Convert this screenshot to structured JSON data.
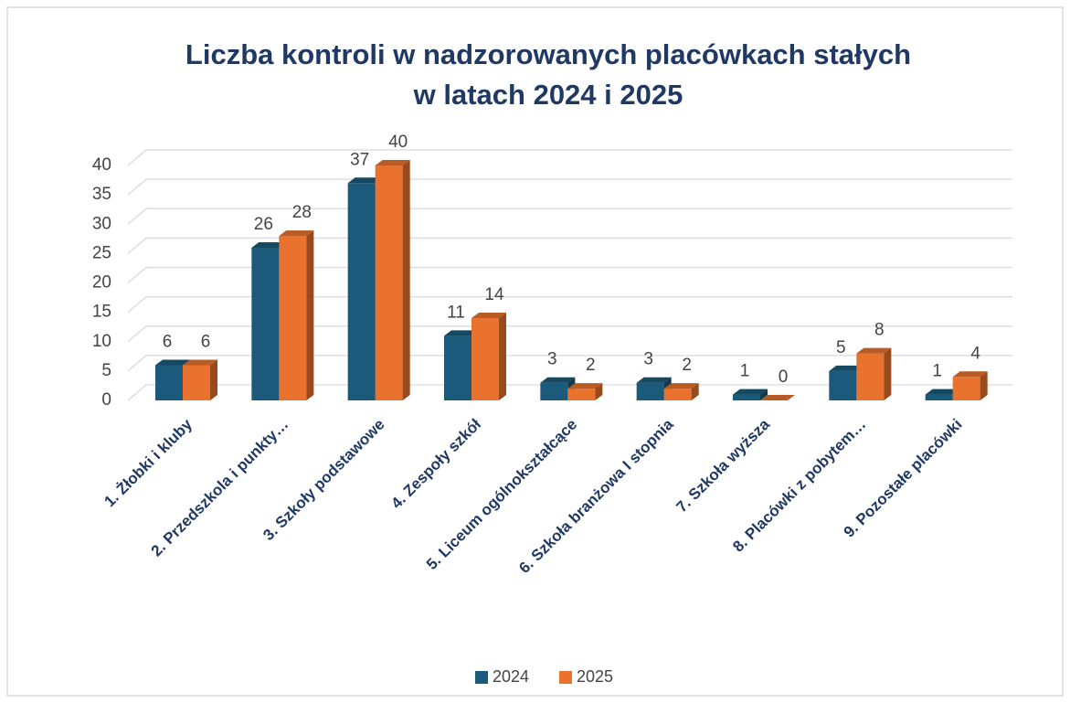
{
  "chart_data": {
    "type": "bar3d",
    "title": [
      "Liczba kontroli w nadzorowanych placówkach stałych",
      "w latach 2024 i 2025"
    ],
    "categories": [
      "1. Żłobki i kluby",
      "2. Przedszkola i punkty…",
      "3. Szkoły podstawowe",
      "4. Zespoły szkół",
      "5. Liceum ogólnokształcące",
      "6. Szkoła branżowa I stopnia",
      "7. Szkoła wyższa",
      "8. Placówki z pobytem…",
      "9. Pozostałe placówki"
    ],
    "series": [
      {
        "name": "2024",
        "color": "#1b5a7a",
        "values": [
          6,
          26,
          37,
          11,
          3,
          3,
          1,
          5,
          1
        ]
      },
      {
        "name": "2025",
        "color": "#e8722e",
        "values": [
          6,
          28,
          40,
          14,
          2,
          2,
          0,
          8,
          4
        ]
      }
    ],
    "ylim": [
      0,
      40
    ],
    "yticks": [
      0,
      5,
      10,
      15,
      20,
      25,
      30,
      35,
      40
    ],
    "grid": true,
    "legend": "bottom"
  }
}
